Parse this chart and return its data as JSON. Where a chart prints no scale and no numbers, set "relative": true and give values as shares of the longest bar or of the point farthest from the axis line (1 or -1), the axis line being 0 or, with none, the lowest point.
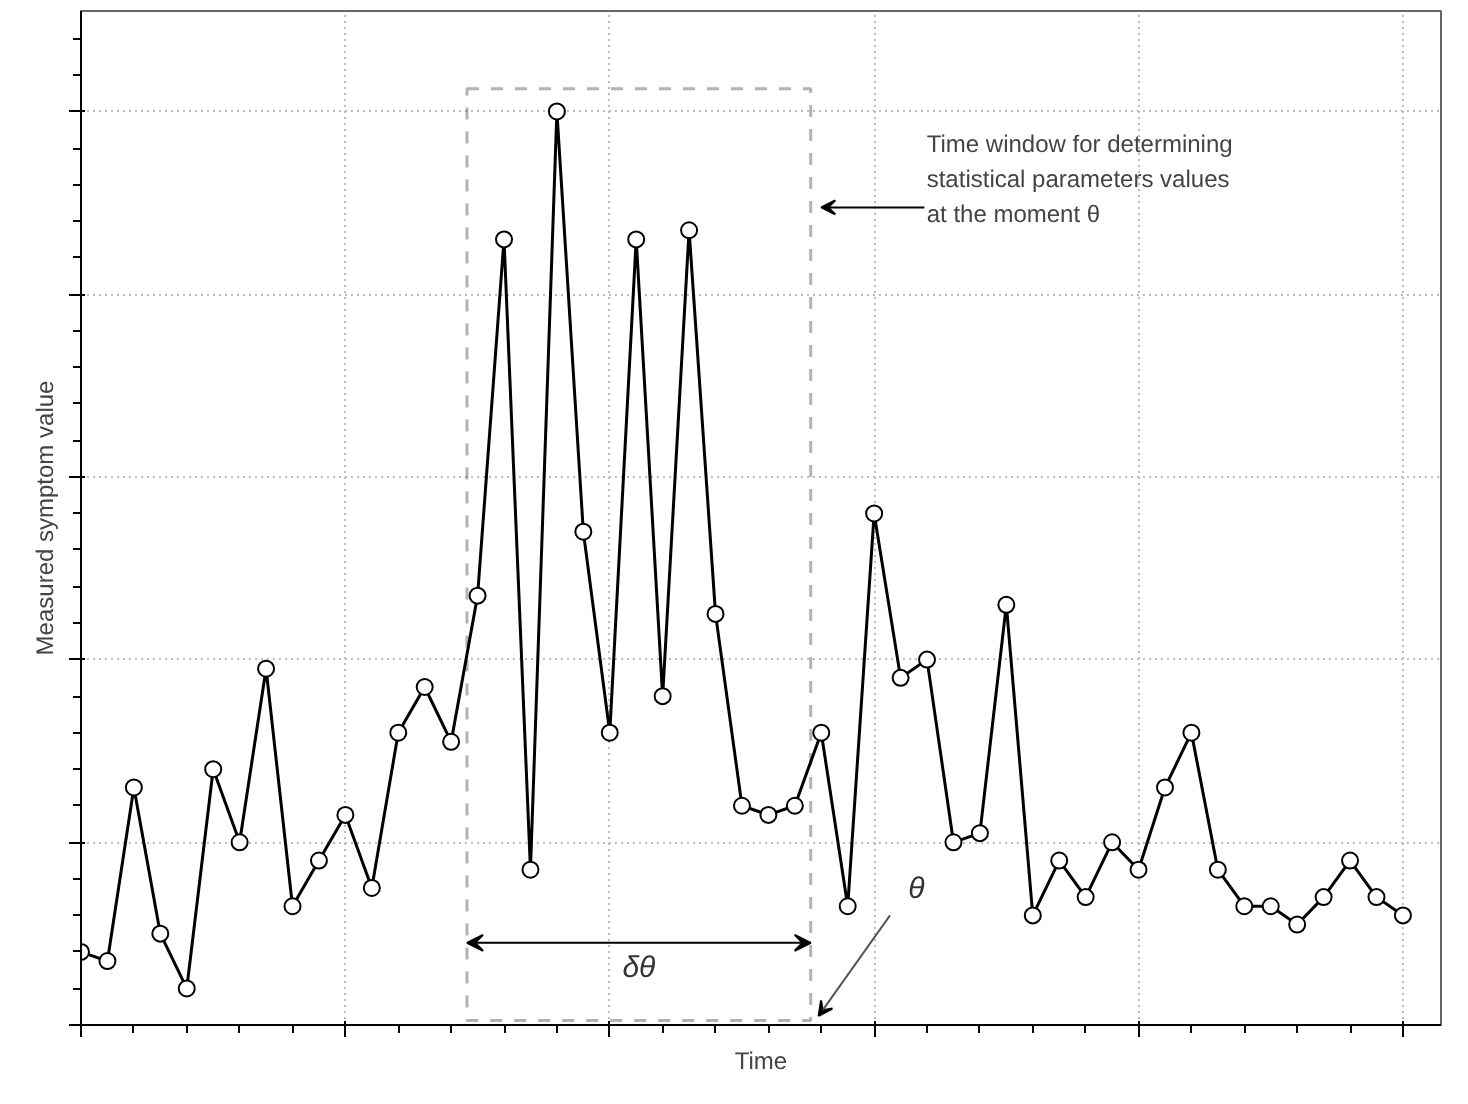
{
  "chart_data": {
    "type": "line",
    "relative": true,
    "xlabel": "Time",
    "ylabel": "Measured symptom value",
    "marker": "circle",
    "line_style": "solid",
    "grid": true,
    "categories": [
      null,
      null,
      null,
      null,
      null,
      null,
      null,
      null,
      null,
      null,
      null,
      null,
      null,
      null,
      null,
      null,
      null,
      null,
      null,
      null,
      null,
      null,
      null,
      null,
      null,
      null,
      null,
      null,
      null,
      null,
      null,
      null,
      null,
      null,
      null,
      null,
      null,
      null,
      null,
      null,
      null,
      null,
      null,
      null,
      null,
      null,
      null,
      null,
      null,
      null,
      null
    ],
    "series": [
      {
        "color": "#000000",
        "values": [
          0.08,
          0.07,
          0.26,
          0.1,
          0.04,
          0.28,
          0.2,
          0.39,
          0.13,
          0.18,
          0.23,
          0.15,
          0.32,
          0.37,
          0.31,
          0.47,
          0.86,
          0.17,
          1.0,
          0.54,
          0.32,
          0.86,
          0.36,
          0.87,
          0.45,
          0.24,
          0.23,
          0.24,
          0.32,
          0.13,
          0.56,
          0.38,
          0.4,
          0.2,
          0.21,
          0.46,
          0.12,
          0.18,
          0.14,
          0.2,
          0.17,
          0.26,
          0.32,
          0.17,
          0.13,
          0.13,
          0.11,
          0.14,
          0.18,
          0.14,
          0.12
        ]
      }
    ],
    "annotations": [
      "Time window for determining\nstatistical parameters values\nat the moment θ",
      "δθ",
      "θ"
    ]
  }
}
